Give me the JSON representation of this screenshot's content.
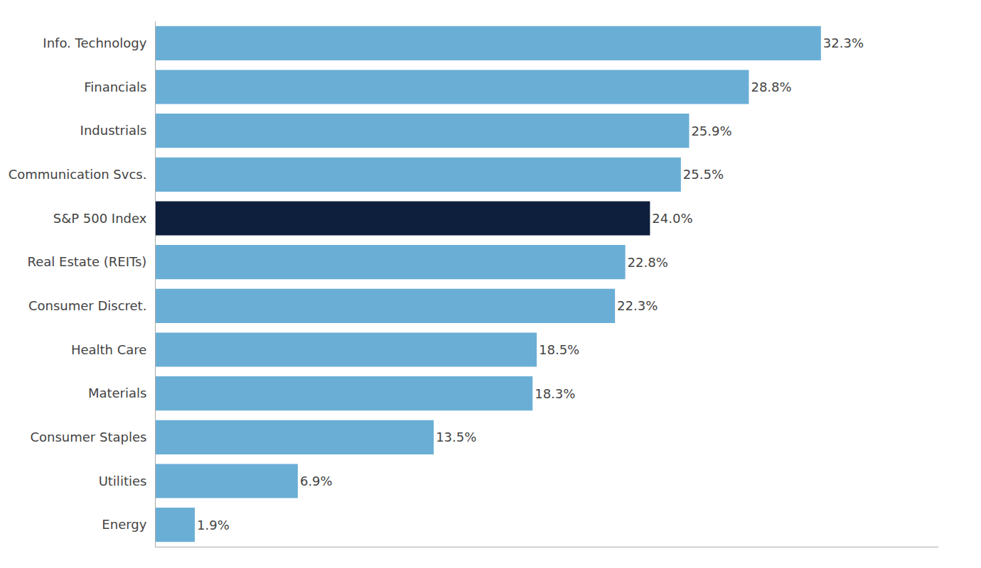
{
  "chart_data": {
    "type": "bar",
    "orientation": "horizontal",
    "categories": [
      "Info. Technology",
      "Financials",
      "Industrials",
      "Communication Svcs.",
      "S&P 500 Index",
      "Real Estate (REITs)",
      "Consumer Discret.",
      "Health Care",
      "Materials",
      "Consumer Staples",
      "Utilities",
      "Energy"
    ],
    "values": [
      32.3,
      28.8,
      25.9,
      25.5,
      24.0,
      22.8,
      22.3,
      18.5,
      18.3,
      13.5,
      6.9,
      1.9
    ],
    "value_labels": [
      "32.3%",
      "28.8%",
      "25.9%",
      "25.5%",
      "24.0%",
      "22.8%",
      "22.3%",
      "18.5%",
      "18.3%",
      "13.5%",
      "6.9%",
      "1.9%"
    ],
    "colors": [
      "#6aaed6",
      "#6aaed6",
      "#6aaed6",
      "#6aaed6",
      "#0d1f3c",
      "#6aaed6",
      "#6aaed6",
      "#6aaed6",
      "#6aaed6",
      "#6aaed6",
      "#6aaed6",
      "#6aaed6"
    ],
    "xlim": [
      0,
      38
    ],
    "data_labels": true,
    "tick_labels": "y",
    "grid": false
  }
}
